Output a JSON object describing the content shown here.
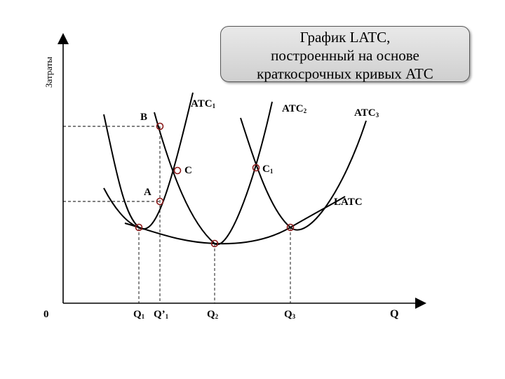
{
  "axis": {
    "y_title": "Затраты",
    "x_title": "Q",
    "origin": "0"
  },
  "caption": {
    "line1": "График LATC,",
    "line2": "построенный на основе",
    "line3": "краткосрочных кривых ATC"
  },
  "curves": {
    "atc1": {
      "base": "ATC",
      "sub": "1"
    },
    "atc2": {
      "base": "ATC",
      "sub": "2"
    },
    "atc3": {
      "base": "ATC",
      "sub": "3"
    },
    "latc": "LATC"
  },
  "points": {
    "b": "B",
    "c": "C",
    "c1": {
      "base": "C",
      "sub": "1"
    },
    "a": "A"
  },
  "ticks": {
    "q1": {
      "base": "Q",
      "sub": "1"
    },
    "q1p": {
      "base": "Q’",
      "sub": "1"
    },
    "q2": {
      "base": "Q",
      "sub": "2"
    },
    "q3": {
      "base": "Q",
      "sub": "3"
    }
  },
  "colors": {
    "curve": "#000000",
    "marker": "#8b1a1a",
    "guide": "#000000"
  }
}
